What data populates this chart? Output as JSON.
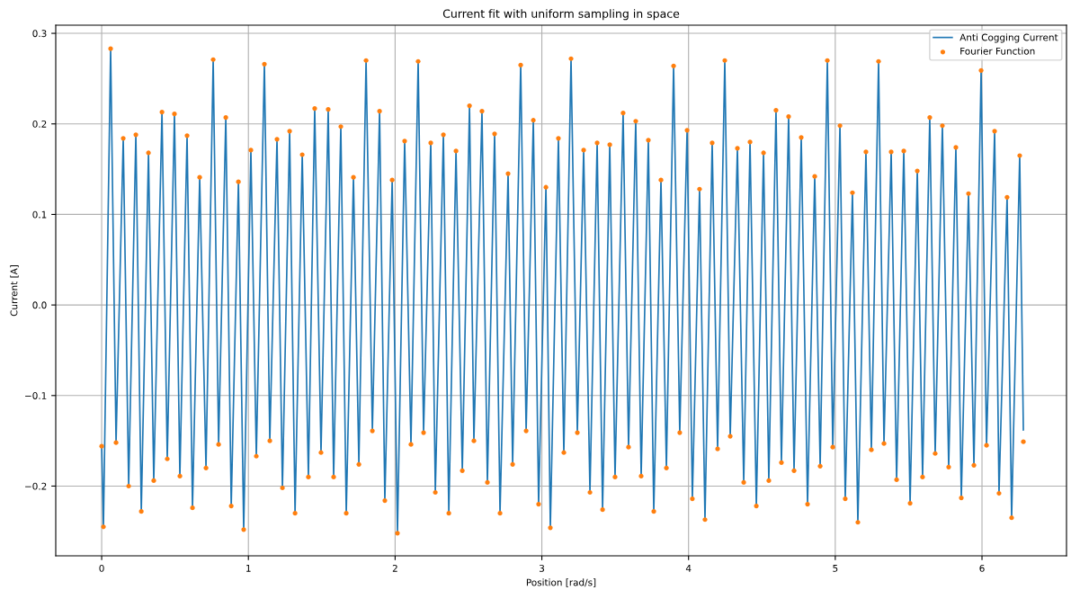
{
  "chart_data": {
    "type": "line",
    "title": "Current fit with uniform sampling in space",
    "xlabel": "Position [rad/s]",
    "ylabel": "Current [A]",
    "x": [
      0.0,
      0.012,
      0.061,
      0.098,
      0.147,
      0.184,
      0.233,
      0.27,
      0.319,
      0.355,
      0.411,
      0.447,
      0.496,
      0.533,
      0.582,
      0.619,
      0.668,
      0.711,
      0.76,
      0.797,
      0.846,
      0.883,
      0.932,
      0.968,
      1.017,
      1.054,
      1.109,
      1.146,
      1.195,
      1.232,
      1.281,
      1.318,
      1.367,
      1.409,
      1.452,
      1.495,
      1.544,
      1.581,
      1.63,
      1.667,
      1.716,
      1.753,
      1.802,
      1.845,
      1.894,
      1.93,
      1.98,
      2.016,
      2.065,
      2.108,
      2.157,
      2.194,
      2.243,
      2.274,
      2.329,
      2.366,
      2.415,
      2.458,
      2.507,
      2.537,
      2.592,
      2.629,
      2.678,
      2.715,
      2.77,
      2.801,
      2.856,
      2.893,
      2.942,
      2.978,
      3.028,
      3.058,
      3.113,
      3.15,
      3.199,
      3.242,
      3.285,
      3.328,
      3.377,
      3.414,
      3.463,
      3.499,
      3.554,
      3.591,
      3.64,
      3.677,
      3.726,
      3.763,
      3.812,
      3.849,
      3.898,
      3.94,
      3.99,
      4.026,
      4.075,
      4.112,
      4.161,
      4.198,
      4.247,
      4.284,
      4.333,
      4.376,
      4.419,
      4.462,
      4.511,
      4.547,
      4.596,
      4.633,
      4.682,
      4.719,
      4.768,
      4.811,
      4.86,
      4.897,
      4.946,
      4.983,
      5.032,
      5.068,
      5.117,
      5.154,
      5.209,
      5.246,
      5.295,
      5.332,
      5.381,
      5.418,
      5.467,
      5.51,
      5.559,
      5.595,
      5.644,
      5.681,
      5.73,
      5.773,
      5.822,
      5.859,
      5.908,
      5.945,
      5.994,
      6.031,
      6.086,
      6.116,
      6.171,
      6.202,
      6.257,
      6.282
    ],
    "series": [
      {
        "name": "Anti Cogging Current",
        "color": "#1f77b4",
        "marker": "none",
        "line_style": "solid",
        "values": [
          -0.156,
          -0.245,
          0.283,
          -0.152,
          0.184,
          -0.2,
          0.188,
          -0.228,
          0.168,
          -0.194,
          0.213,
          -0.17,
          0.211,
          -0.189,
          0.187,
          -0.224,
          0.141,
          -0.18,
          0.271,
          -0.154,
          0.207,
          -0.222,
          0.136,
          -0.248,
          0.171,
          -0.167,
          0.266,
          -0.15,
          0.183,
          -0.202,
          0.192,
          -0.23,
          0.166,
          -0.19,
          0.217,
          -0.163,
          0.216,
          -0.19,
          0.197,
          -0.23,
          0.141,
          -0.176,
          0.27,
          -0.139,
          0.214,
          -0.216,
          0.138,
          -0.252,
          0.181,
          -0.154,
          0.269,
          -0.141,
          0.179,
          -0.207,
          0.188,
          -0.23,
          0.17,
          -0.183,
          0.22,
          -0.15,
          0.214,
          -0.196,
          0.189,
          -0.23,
          0.145,
          -0.176,
          0.265,
          -0.139,
          0.204,
          -0.22,
          0.13,
          -0.246,
          0.184,
          -0.163,
          0.272,
          -0.141,
          0.171,
          -0.207,
          0.179,
          -0.226,
          0.177,
          -0.19,
          0.212,
          -0.157,
          0.203,
          -0.189,
          0.182,
          -0.228,
          0.138,
          -0.18,
          0.264,
          -0.141,
          0.193,
          -0.214,
          0.128,
          -0.237,
          0.179,
          -0.159,
          0.27,
          -0.145,
          0.173,
          -0.196,
          0.18,
          -0.222,
          0.168,
          -0.194,
          0.215,
          -0.174,
          0.208,
          -0.183,
          0.185,
          -0.22,
          0.142,
          -0.178,
          0.27,
          -0.157,
          0.198,
          -0.214,
          0.124,
          -0.24,
          0.169,
          -0.16,
          0.269,
          -0.153,
          0.169,
          -0.193,
          0.17,
          -0.219,
          0.148,
          -0.19,
          0.207,
          -0.164,
          0.198,
          -0.179,
          0.174,
          -0.213,
          0.123,
          -0.177,
          0.259,
          -0.155,
          0.192,
          -0.208,
          0.119,
          -0.235,
          0.165,
          -0.138
        ]
      },
      {
        "name": "Fourier Function",
        "type": "scatter",
        "color": "#ff7f0e",
        "marker": "circle",
        "values": [
          -0.156,
          -0.245,
          0.283,
          -0.152,
          0.184,
          -0.2,
          0.188,
          -0.228,
          0.168,
          -0.194,
          0.213,
          -0.17,
          0.211,
          -0.189,
          0.187,
          -0.224,
          0.141,
          -0.18,
          0.271,
          -0.154,
          0.207,
          -0.222,
          0.136,
          -0.248,
          0.171,
          -0.167,
          0.266,
          -0.15,
          0.183,
          -0.202,
          0.192,
          -0.23,
          0.166,
          -0.19,
          0.217,
          -0.163,
          0.216,
          -0.19,
          0.197,
          -0.23,
          0.141,
          -0.176,
          0.27,
          -0.139,
          0.214,
          -0.216,
          0.138,
          -0.252,
          0.181,
          -0.154,
          0.269,
          -0.141,
          0.179,
          -0.207,
          0.188,
          -0.23,
          0.17,
          -0.183,
          0.22,
          -0.15,
          0.214,
          -0.196,
          0.189,
          -0.23,
          0.145,
          -0.176,
          0.265,
          -0.139,
          0.204,
          -0.22,
          0.13,
          -0.246,
          0.184,
          -0.163,
          0.272,
          -0.141,
          0.171,
          -0.207,
          0.179,
          -0.226,
          0.177,
          -0.19,
          0.212,
          -0.157,
          0.203,
          -0.189,
          0.182,
          -0.228,
          0.138,
          -0.18,
          0.264,
          -0.141,
          0.193,
          -0.214,
          0.128,
          -0.237,
          0.179,
          -0.159,
          0.27,
          -0.145,
          0.173,
          -0.196,
          0.18,
          -0.222,
          0.168,
          -0.194,
          0.215,
          -0.174,
          0.208,
          -0.183,
          0.185,
          -0.22,
          0.142,
          -0.178,
          0.27,
          -0.157,
          0.198,
          -0.214,
          0.124,
          -0.24,
          0.169,
          -0.16,
          0.269,
          -0.153,
          0.169,
          -0.193,
          0.17,
          -0.219,
          0.148,
          -0.19,
          0.207,
          -0.164,
          0.198,
          -0.179,
          0.174,
          -0.213,
          0.123,
          -0.177,
          0.259,
          -0.155,
          0.192,
          -0.208,
          0.119,
          -0.235,
          0.165,
          -0.151
        ]
      }
    ],
    "xlim": [
      -0.313,
      6.576
    ],
    "ylim": [
      -0.277,
      0.309
    ],
    "xticks": [
      0,
      1,
      2,
      3,
      4,
      5,
      6
    ],
    "yticks": [
      {
        "value": -0.2,
        "label": "−0.2"
      },
      {
        "value": -0.1,
        "label": "−0.1"
      },
      {
        "value": 0,
        "label": "0.0"
      },
      {
        "value": 0.1,
        "label": "0.1"
      },
      {
        "value": 0.2,
        "label": "0.2"
      },
      {
        "value": 0.3,
        "label": "0.3"
      }
    ],
    "grid": true,
    "legend": "top right"
  }
}
